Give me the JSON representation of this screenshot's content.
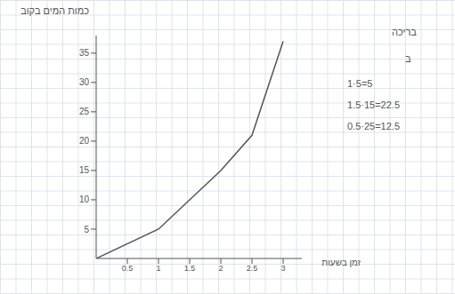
{
  "chart_data": {
    "type": "line",
    "x_label": "זמן בשעות",
    "y_label": "כמות המים בקוב",
    "x": [
      0,
      1,
      2,
      2.5,
      3
    ],
    "values": [
      0,
      5,
      15,
      21,
      37
    ],
    "color": "#555555",
    "xlim": [
      0,
      3.3
    ],
    "ylim": [
      0,
      38
    ],
    "xticks": [
      0.5,
      1,
      1.5,
      2,
      2.5,
      3
    ],
    "yticks": [
      5,
      10,
      15,
      20,
      25,
      30,
      35
    ],
    "grid": false,
    "annotations": [
      "בריכה",
      "ב",
      "1·5=5",
      "1.5·15=22.5",
      "0.5·25=12.5"
    ]
  }
}
